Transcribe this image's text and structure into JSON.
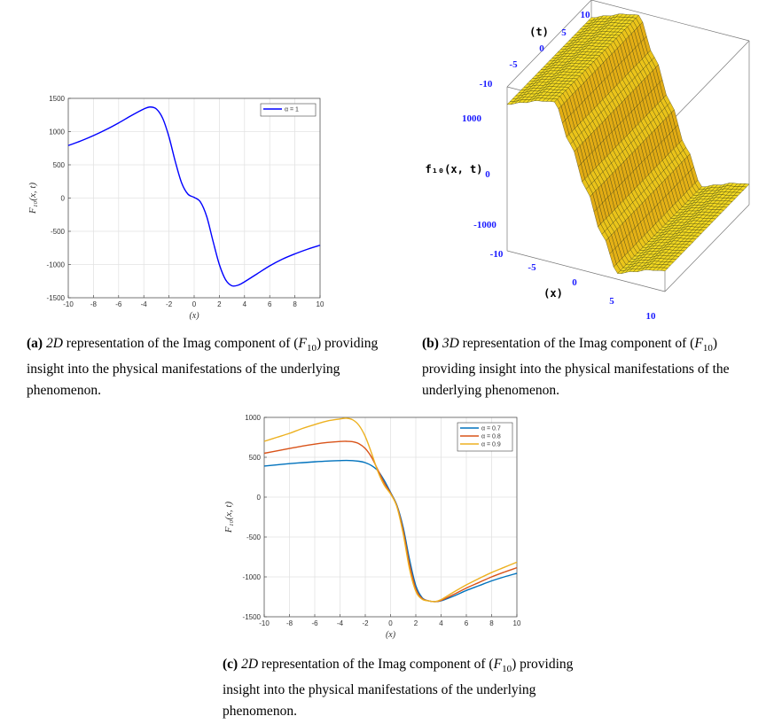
{
  "charts": {
    "a": {
      "ylabel": "F₁₀(x, t)",
      "xlabel": "(x)",
      "xticks": [
        "-10",
        "-8",
        "-6",
        "-4",
        "-2",
        "0",
        "2",
        "4",
        "6",
        "8",
        "10"
      ],
      "yticks": [
        "1500",
        "1000",
        "500",
        "0",
        "-500",
        "-1000",
        "-1500"
      ],
      "legend": [
        "α = 1"
      ]
    },
    "b": {
      "z_label": "f₁₀(x, t)",
      "x_label": "(x)",
      "t_label": "(t)",
      "t_ticks": [
        "10",
        "5",
        "0",
        "-5",
        "-10"
      ],
      "z_ticks": [
        "1000",
        "0",
        "-1000"
      ],
      "x_ticks": [
        "-10",
        "-5",
        "0",
        "5",
        "10"
      ]
    },
    "c": {
      "ylabel": "F₁₀(x, t)",
      "xlabel": "(x)",
      "xticks": [
        "-10",
        "-8",
        "-6",
        "-4",
        "-2",
        "0",
        "2",
        "4",
        "6",
        "8",
        "10"
      ],
      "yticks": [
        "1000",
        "500",
        "0",
        "-500",
        "-1000",
        "-1500"
      ],
      "legend": [
        "α = 0.7",
        "α = 0.8",
        "α = 0.9"
      ]
    }
  },
  "captions": {
    "a": {
      "tag": "(a)",
      "dim": "2D",
      "text": " representation of the Imag component of (",
      "sym": "F",
      "sub": "10",
      "end": ") providing insight into the physical manifestations of the underlying phenomenon."
    },
    "b": {
      "tag": "(b)",
      "dim": "3D",
      "text": " representation of the Imag component of (",
      "sym": "F",
      "sub": "10",
      "end": ") providing insight into the physical manifestations of the underlying phenomenon."
    },
    "c": {
      "tag": "(c)",
      "dim": "2D",
      "text": " representation of the Imag component of (",
      "sym": "F",
      "sub": "10",
      "end": ") providing insight into the physical manifestations of the underlying phenomenon."
    }
  },
  "chart_data": [
    {
      "type": "line",
      "xlabel": "(x)",
      "ylabel": "F₁₀(x, t)",
      "xlim": [
        -10,
        10
      ],
      "ylim": [
        -1500,
        1500
      ],
      "grid": true,
      "legend_position": "top-right",
      "series": [
        {
          "name": "α = 1",
          "color": "#0000ff",
          "x": [
            -10,
            -9,
            -8,
            -7,
            -6,
            -5,
            -4,
            -3.5,
            -3,
            -2.5,
            -2,
            -1.5,
            -1,
            -0.5,
            0,
            0.5,
            1,
            1.5,
            2,
            2.5,
            3,
            3.5,
            4,
            5,
            6,
            7,
            8,
            9,
            10
          ],
          "y": [
            790,
            860,
            940,
            1030,
            1130,
            1240,
            1340,
            1370,
            1340,
            1200,
            920,
            550,
            230,
            60,
            10,
            -60,
            -280,
            -650,
            -1000,
            -1230,
            -1320,
            -1310,
            -1260,
            -1140,
            -1020,
            -920,
            -840,
            -770,
            -710
          ]
        }
      ]
    },
    {
      "type": "surface",
      "title": "",
      "x_label": "(x)",
      "y_label": "(t)",
      "z_label": "f₁₀(x, t)",
      "xlim": [
        -10,
        10
      ],
      "ylim": [
        -10,
        10
      ],
      "zlim": [
        -1400,
        1400
      ],
      "profile_x": [
        -10,
        -8,
        -6,
        -4,
        -2,
        0,
        2,
        4,
        6,
        8,
        10
      ],
      "profile_z": [
        1100,
        1200,
        1300,
        1350,
        700,
        0,
        -700,
        -1300,
        -1200,
        -1100,
        -1050
      ]
    },
    {
      "type": "line",
      "xlabel": "(x)",
      "ylabel": "F₁₀(x, t)",
      "xlim": [
        -10,
        10
      ],
      "ylim": [
        -1500,
        1000
      ],
      "grid": true,
      "legend_position": "top-right",
      "x": [
        -10,
        -9,
        -8,
        -7,
        -6,
        -5,
        -4,
        -3.5,
        -3,
        -2.5,
        -2,
        -1.5,
        -1,
        -0.5,
        0,
        0.5,
        1,
        1.5,
        2,
        2.5,
        3,
        3.5,
        4,
        5,
        6,
        7,
        8,
        9,
        10
      ],
      "series": [
        {
          "name": "α = 0.7",
          "color": "#0072bd",
          "y": [
            390,
            405,
            420,
            432,
            443,
            452,
            458,
            460,
            458,
            450,
            432,
            395,
            330,
            210,
            60,
            -100,
            -380,
            -780,
            -1110,
            -1260,
            -1300,
            -1310,
            -1300,
            -1240,
            -1170,
            -1110,
            -1050,
            -1000,
            -955
          ]
        },
        {
          "name": "α = 0.8",
          "color": "#d95319",
          "y": [
            550,
            580,
            610,
            640,
            665,
            685,
            698,
            700,
            695,
            670,
            610,
            500,
            340,
            180,
            50,
            -110,
            -420,
            -840,
            -1150,
            -1270,
            -1300,
            -1310,
            -1295,
            -1220,
            -1140,
            -1070,
            -1000,
            -940,
            -885
          ]
        },
        {
          "name": "α = 0.9",
          "color": "#edb120",
          "y": [
            700,
            750,
            800,
            860,
            910,
            955,
            980,
            990,
            970,
            900,
            760,
            550,
            320,
            150,
            40,
            -120,
            -460,
            -900,
            -1180,
            -1280,
            -1300,
            -1310,
            -1285,
            -1190,
            -1100,
            -1020,
            -945,
            -880,
            -815
          ]
        }
      ]
    }
  ]
}
